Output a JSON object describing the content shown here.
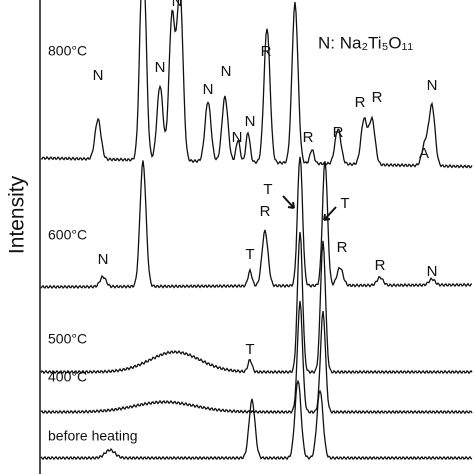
{
  "y_axis_label": "Intensity",
  "legend": [
    "N: Na₂Ti₅O₁₁"
  ],
  "curves": [
    "800°C",
    "600°C",
    "500°C",
    "400°C",
    "before heating"
  ],
  "peak_labels": {
    "c800": [
      "N",
      "N",
      "N",
      "N",
      "N",
      "N",
      "N",
      "R",
      "R",
      "R",
      "R",
      "R",
      "A",
      "N"
    ],
    "c600": [
      "N",
      "T",
      "T",
      "R",
      "R",
      "T",
      "R",
      "N"
    ],
    "c500": [
      "T"
    ]
  }
}
